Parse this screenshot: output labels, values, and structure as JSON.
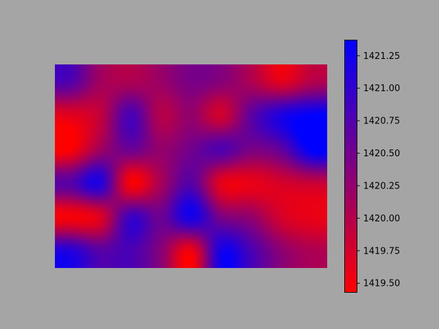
{
  "chart_data": {
    "type": "heatmap",
    "title": "",
    "xlabel": "",
    "ylabel": "",
    "colormap": [
      "#ff0000",
      "#0000ff"
    ],
    "background_color": "#a5a5a5",
    "interpolation": "bicubic",
    "value_range": [
      1419.43,
      1421.37
    ],
    "grid": [
      [
        1420.75,
        1420.15,
        1420.05,
        1420.2,
        1420.45,
        1420.35,
        1420.05,
        1419.65,
        1420.0
      ],
      [
        1419.65,
        1419.9,
        1420.8,
        1420.0,
        1420.25,
        1419.8,
        1420.65,
        1421.15,
        1421.35
      ],
      [
        1419.45,
        1420.15,
        1420.55,
        1420.25,
        1420.5,
        1420.75,
        1420.45,
        1420.65,
        1421.4
      ],
      [
        1420.7,
        1421.1,
        1419.5,
        1420.1,
        1420.7,
        1419.65,
        1419.6,
        1419.75,
        1419.85
      ],
      [
        1419.5,
        1419.7,
        1420.9,
        1420.55,
        1421.2,
        1420.45,
        1420.25,
        1419.75,
        1419.6
      ],
      [
        1421.1,
        1420.7,
        1420.8,
        1420.35,
        1419.55,
        1421.2,
        1420.8,
        1420.3,
        1420.05
      ]
    ],
    "colorbar": {
      "ticks": [
        "1419.50",
        "1419.75",
        "1420.00",
        "1420.25",
        "1420.50",
        "1420.75",
        "1421.00",
        "1421.25"
      ],
      "tick_values": [
        1419.5,
        1419.75,
        1420.0,
        1420.25,
        1420.5,
        1420.75,
        1421.0,
        1421.25
      ]
    }
  }
}
